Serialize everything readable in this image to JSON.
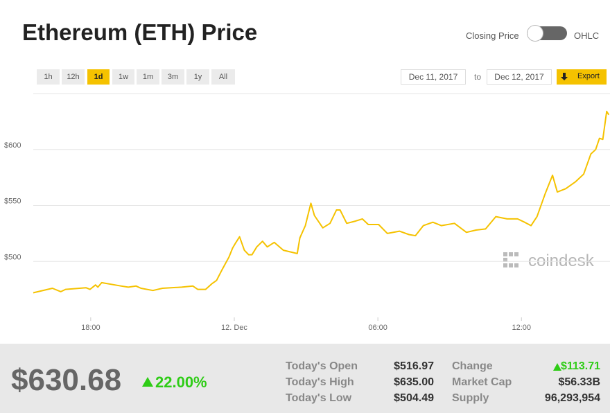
{
  "header": {
    "title": "Ethereum (ETH) Price",
    "toggle_left": "Closing Price",
    "toggle_right": "OHLC"
  },
  "ranges": [
    "1h",
    "12h",
    "1d",
    "1w",
    "1m",
    "3m",
    "1y",
    "All"
  ],
  "dates": {
    "from": "Dec 11, 2017",
    "to_word": "to",
    "to": "Dec 12, 2017",
    "export": "Export"
  },
  "watermark": "coindesk",
  "chart_data": {
    "type": "line",
    "color": "#f5c200",
    "grid": true,
    "x": [
      15.6,
      16.4,
      16.75,
      16.95,
      17.8,
      17.97,
      18.2,
      18.3,
      18.46,
      19.28,
      19.57,
      19.9,
      20.1,
      20.6,
      21.0,
      21.8,
      22.27,
      22.47,
      22.8,
      23.06,
      23.26,
      23.5,
      23.78,
      23.93,
      24.07,
      24.22,
      24.42,
      24.6,
      24.74,
      24.94,
      25.18,
      25.38,
      25.67,
      26.05,
      26.63,
      26.74,
      26.97,
      27.2,
      27.35,
      27.7,
      28.0,
      28.27,
      28.42,
      28.7,
      29.06,
      29.35,
      29.6,
      30.03,
      30.4,
      30.9,
      31.3,
      31.57,
      31.9,
      32.3,
      32.65,
      33.2,
      33.7,
      34.1,
      34.5,
      34.93,
      35.4,
      35.84,
      36.13,
      36.4,
      36.65,
      37.0,
      37.3,
      37.5,
      37.85,
      38.25,
      38.6,
      38.9,
      39.1,
      39.26,
      39.4,
      39.56,
      39.65
    ],
    "values": [
      472,
      476,
      473,
      475,
      476.5,
      475,
      479,
      477,
      481,
      478,
      477,
      478,
      476,
      474,
      476,
      477,
      478,
      475,
      475,
      480,
      483,
      493,
      504,
      512,
      517,
      522,
      510,
      506,
      506,
      513,
      518,
      513,
      517,
      510,
      507,
      521,
      532,
      552,
      541,
      530,
      534,
      546,
      546,
      534,
      536,
      538,
      533,
      533,
      525,
      527,
      524,
      523,
      532,
      535,
      532,
      534,
      526,
      528,
      529,
      540,
      538,
      538,
      535,
      532,
      540,
      561,
      577,
      562,
      565,
      571,
      578,
      596,
      600,
      610,
      609,
      634,
      631
    ],
    "xlim": [
      15.6,
      39.7
    ],
    "xticks": [
      {
        "value": 18,
        "label": "18:00"
      },
      {
        "value": 24,
        "label": "12. Dec"
      },
      {
        "value": 30,
        "label": "06:00"
      },
      {
        "value": 36,
        "label": "12:00"
      }
    ],
    "ylim": [
      450,
      650
    ],
    "yticks": [
      {
        "value": 500,
        "label": "$500"
      },
      {
        "value": 550,
        "label": "$550"
      },
      {
        "value": 600,
        "label": "$600"
      }
    ]
  },
  "summary": {
    "price": "$630.68",
    "change_pct": "22.00%",
    "stats": [
      [
        "Today's Open",
        "$516.97"
      ],
      [
        "Today's High",
        "$635.00"
      ],
      [
        "Today's Low",
        "$504.49"
      ]
    ],
    "stats2": [
      [
        "Change",
        "$113.71"
      ],
      [
        "Market Cap",
        "$56.33B"
      ],
      [
        "Supply",
        "96,293,954"
      ]
    ]
  }
}
